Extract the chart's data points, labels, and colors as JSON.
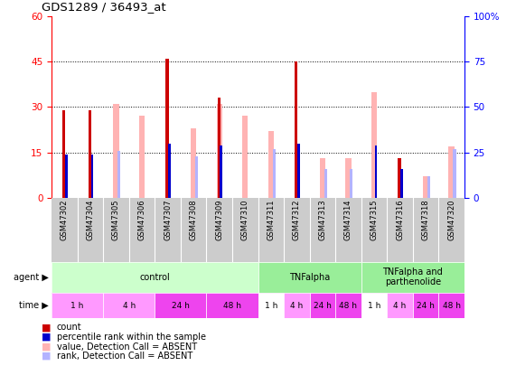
{
  "title": "GDS1289 / 36493_at",
  "samples": [
    "GSM47302",
    "GSM47304",
    "GSM47305",
    "GSM47306",
    "GSM47307",
    "GSM47308",
    "GSM47309",
    "GSM47310",
    "GSM47311",
    "GSM47312",
    "GSM47313",
    "GSM47314",
    "GSM47315",
    "GSM47316",
    "GSM47318",
    "GSM47320"
  ],
  "count_values": [
    29,
    29,
    null,
    null,
    46,
    null,
    33,
    null,
    null,
    45,
    null,
    null,
    null,
    13,
    null,
    null
  ],
  "rank_values": [
    24,
    24,
    null,
    null,
    30,
    null,
    29,
    null,
    null,
    30,
    null,
    null,
    29,
    16,
    null,
    null
  ],
  "absent_value_values": [
    null,
    null,
    31,
    27,
    null,
    23,
    31,
    27,
    22,
    null,
    13,
    13,
    35,
    null,
    7,
    17
  ],
  "absent_rank_values": [
    null,
    null,
    26,
    null,
    null,
    23,
    null,
    null,
    27,
    null,
    16,
    16,
    null,
    null,
    12,
    27
  ],
  "ylim_left": [
    0,
    60
  ],
  "ylim_right": [
    0,
    100
  ],
  "yticks_left": [
    0,
    15,
    30,
    45,
    60
  ],
  "yticks_right": [
    0,
    25,
    50,
    75,
    100
  ],
  "color_count": "#cc0000",
  "color_rank": "#0000cc",
  "color_absent_value": "#ffb3b3",
  "color_absent_rank": "#b3b3ff",
  "bg_color": "#ffffff",
  "bar_width": 0.4,
  "legend_items": [
    {
      "label": "count",
      "color": "#cc0000"
    },
    {
      "label": "percentile rank within the sample",
      "color": "#0000cc"
    },
    {
      "label": "value, Detection Call = ABSENT",
      "color": "#ffb3b3"
    },
    {
      "label": "rank, Detection Call = ABSENT",
      "color": "#b3b3ff"
    }
  ],
  "agent_groups": [
    {
      "label": "control",
      "start": 0,
      "end": 7,
      "color": "#ccffcc"
    },
    {
      "label": "TNFalpha",
      "start": 8,
      "end": 11,
      "color": "#99ee99"
    },
    {
      "label": "TNFalpha and\nparthenolide",
      "start": 12,
      "end": 15,
      "color": "#99ee99"
    }
  ],
  "time_groups": [
    {
      "label": "1 h",
      "start": 0,
      "end": 1,
      "color": "#ff99ff"
    },
    {
      "label": "4 h",
      "start": 2,
      "end": 3,
      "color": "#ff99ff"
    },
    {
      "label": "24 h",
      "start": 4,
      "end": 5,
      "color": "#ee44ee"
    },
    {
      "label": "48 h",
      "start": 6,
      "end": 7,
      "color": "#ee44ee"
    },
    {
      "label": "1 h",
      "start": 8,
      "end": 8,
      "color": "#ffffff"
    },
    {
      "label": "4 h",
      "start": 9,
      "end": 9,
      "color": "#ff99ff"
    },
    {
      "label": "24 h",
      "start": 10,
      "end": 10,
      "color": "#ee44ee"
    },
    {
      "label": "48 h",
      "start": 11,
      "end": 11,
      "color": "#ee44ee"
    },
    {
      "label": "1 h",
      "start": 12,
      "end": 12,
      "color": "#ffffff"
    },
    {
      "label": "4 h",
      "start": 13,
      "end": 13,
      "color": "#ff99ff"
    },
    {
      "label": "24 h",
      "start": 14,
      "end": 14,
      "color": "#ee44ee"
    },
    {
      "label": "48 h",
      "start": 15,
      "end": 15,
      "color": "#ee44ee"
    }
  ]
}
